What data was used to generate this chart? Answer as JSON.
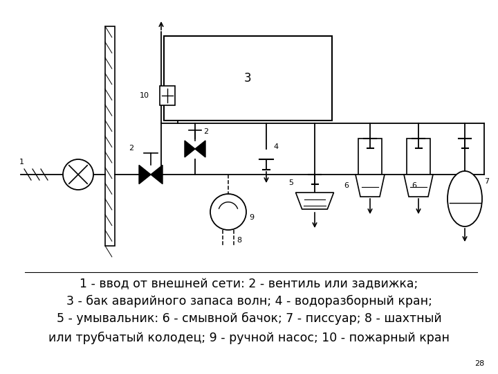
{
  "bg_color": "#ffffff",
  "caption_lines": [
    "1 - ввод от внешней сети: 2 - вентиль или задвижка;",
    "3 - бак аварийного запаса волн; 4 - водоразборный кран;",
    "5 - умывальник: 6 - смывной бачок; 7 - писсуар; 8 - шахтный",
    "или трубчатый колодец; 9 - ручной насос; 10 - пожарный кран"
  ],
  "caption_fontsize": 12.5,
  "caption_color": "#000000",
  "page_number": "28"
}
